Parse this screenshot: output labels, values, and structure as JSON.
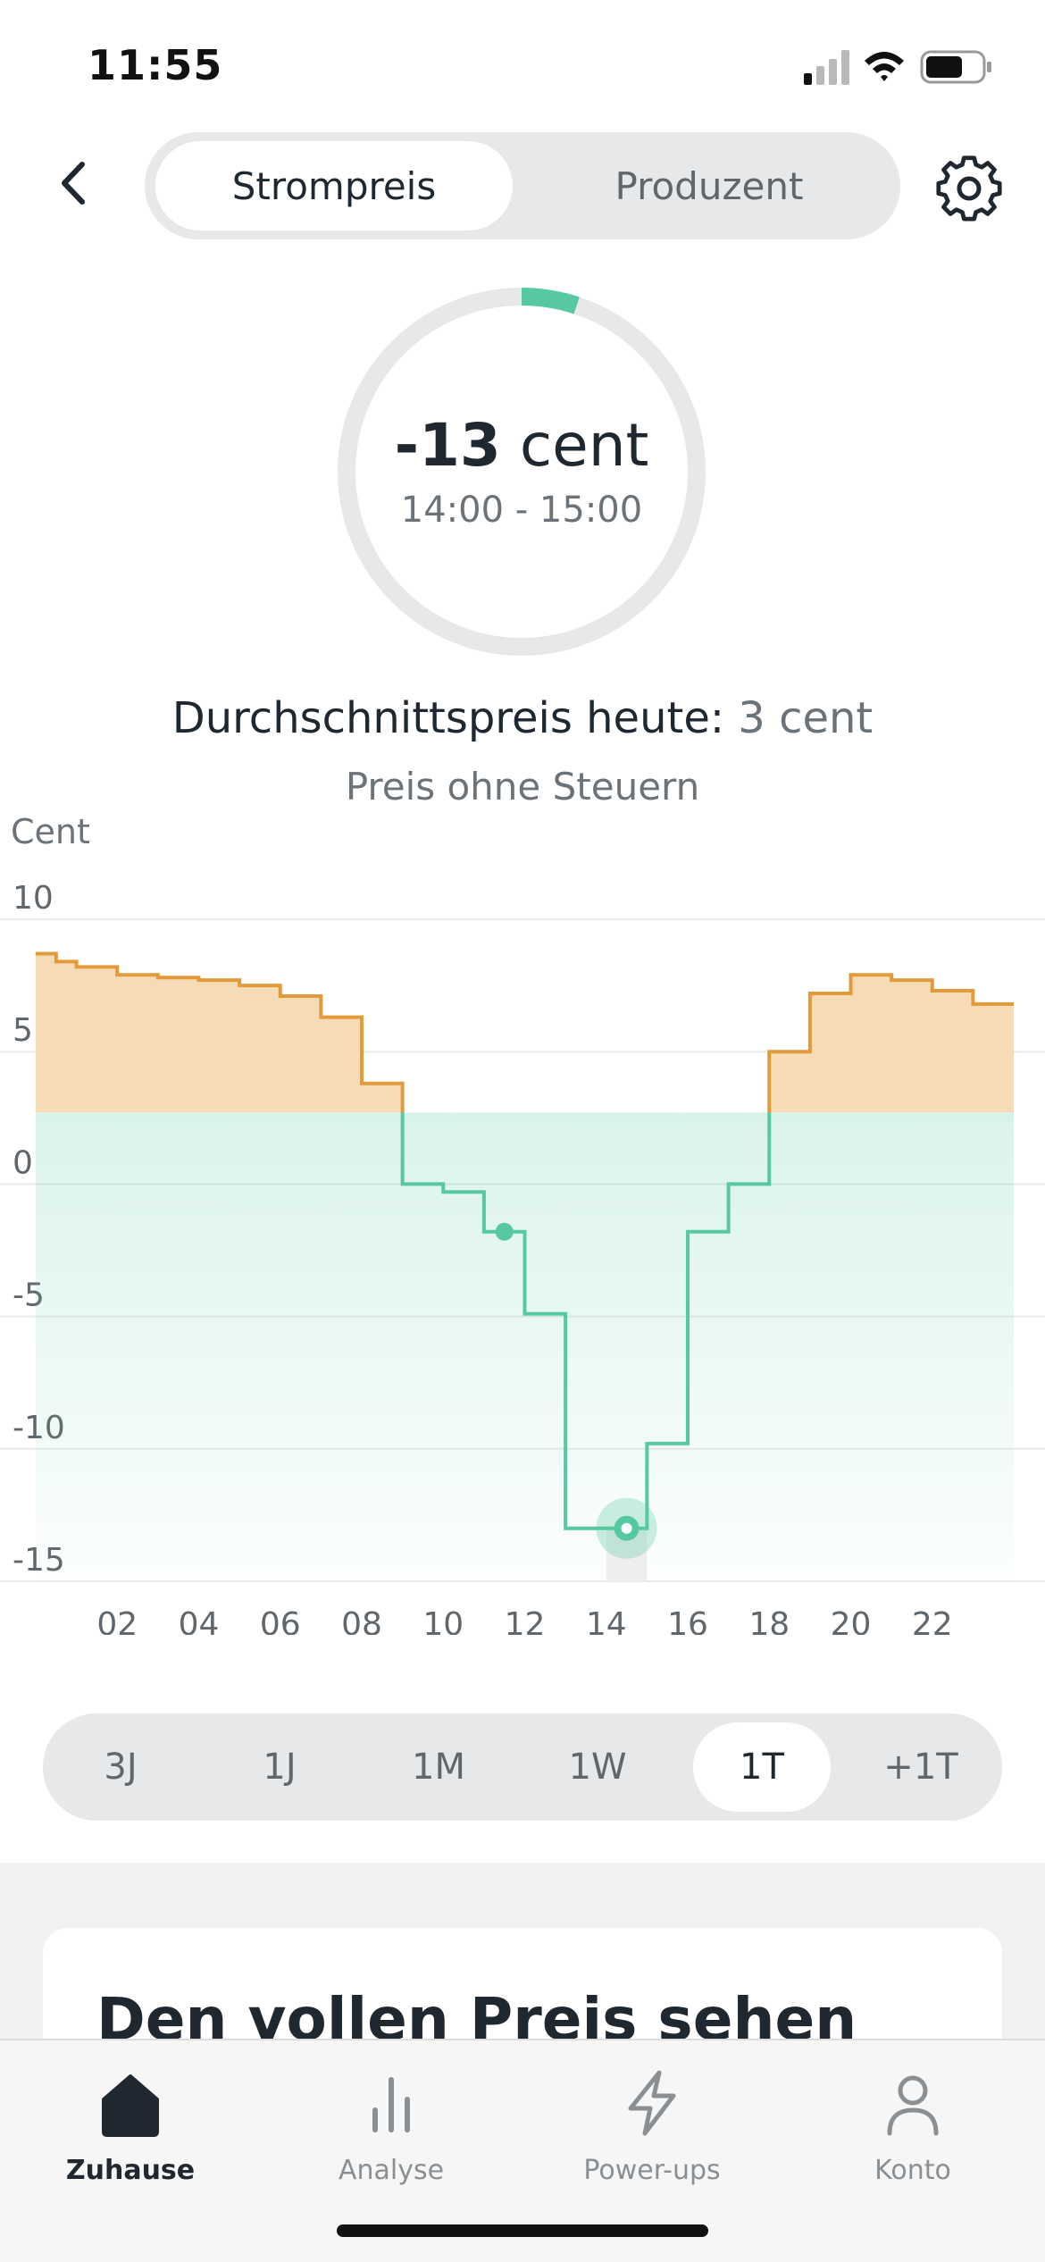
{
  "status_bar": {
    "time": "11:55"
  },
  "header": {
    "segments": [
      {
        "label": "Strompreis",
        "active": true
      },
      {
        "label": "Produzent",
        "active": false
      }
    ]
  },
  "current_price": {
    "value": "-13",
    "unit": "cent",
    "time_range": "14:00 - 15:00",
    "ring_accent": "#57c9a0"
  },
  "average": {
    "label": "Durchschnittspreis heute:",
    "value": "3 cent"
  },
  "subtitle": "Preis ohne Steuern",
  "chart_data": {
    "type": "line",
    "step": true,
    "ylabel": "Cent",
    "ylim": [
      -15,
      10
    ],
    "yticks": [
      10,
      5,
      0,
      -5,
      -10,
      -15
    ],
    "ytick_labels": [
      "10",
      "5",
      "0",
      "-5",
      "-10",
      "-15"
    ],
    "xlim": [
      0,
      23
    ],
    "xticks": [
      2,
      4,
      6,
      8,
      10,
      12,
      14,
      16,
      18,
      20,
      22
    ],
    "xtick_labels": [
      "02",
      "04",
      "06",
      "08",
      "10",
      "12",
      "14",
      "16",
      "18",
      "20",
      "22"
    ],
    "average": 2.7,
    "series": [
      {
        "hours": [
          0,
          0.5,
          1,
          2,
          3,
          4,
          5,
          6,
          7,
          8,
          9,
          10,
          11,
          12,
          13,
          14,
          15,
          16,
          17,
          18,
          19,
          20,
          21,
          22,
          23
        ],
        "values": [
          8.7,
          8.4,
          8.2,
          7.9,
          7.8,
          7.7,
          7.5,
          7.1,
          6.3,
          3.8,
          0,
          -0.3,
          -1.8,
          -4.9,
          -13.0,
          -13.0,
          -9.8,
          -1.8,
          0,
          5.0,
          7.2,
          7.9,
          7.7,
          7.3,
          6.8
        ],
        "above_color": "#e39a3b",
        "below_color": "#57c9a0"
      }
    ],
    "markers": [
      {
        "hour": 11.5,
        "value": -1.8,
        "kind": "dot"
      },
      {
        "hour": 14.5,
        "value": -13.0,
        "kind": "selected"
      }
    ],
    "selected_hour": 14
  },
  "range_selector": {
    "options": [
      {
        "label": "3J",
        "active": false
      },
      {
        "label": "1J",
        "active": false
      },
      {
        "label": "1M",
        "active": false
      },
      {
        "label": "1W",
        "active": false
      },
      {
        "label": "1T",
        "active": true
      },
      {
        "label": "+1T",
        "active": false
      }
    ]
  },
  "card": {
    "title": "Den vollen Preis sehen"
  },
  "tabbar": {
    "tabs": [
      {
        "label": "Zuhause",
        "icon": "home-icon",
        "active": true
      },
      {
        "label": "Analyse",
        "icon": "bar-chart-icon",
        "active": false
      },
      {
        "label": "Power-ups",
        "icon": "lightning-icon",
        "active": false
      },
      {
        "label": "Konto",
        "icon": "person-icon",
        "active": false
      }
    ]
  }
}
